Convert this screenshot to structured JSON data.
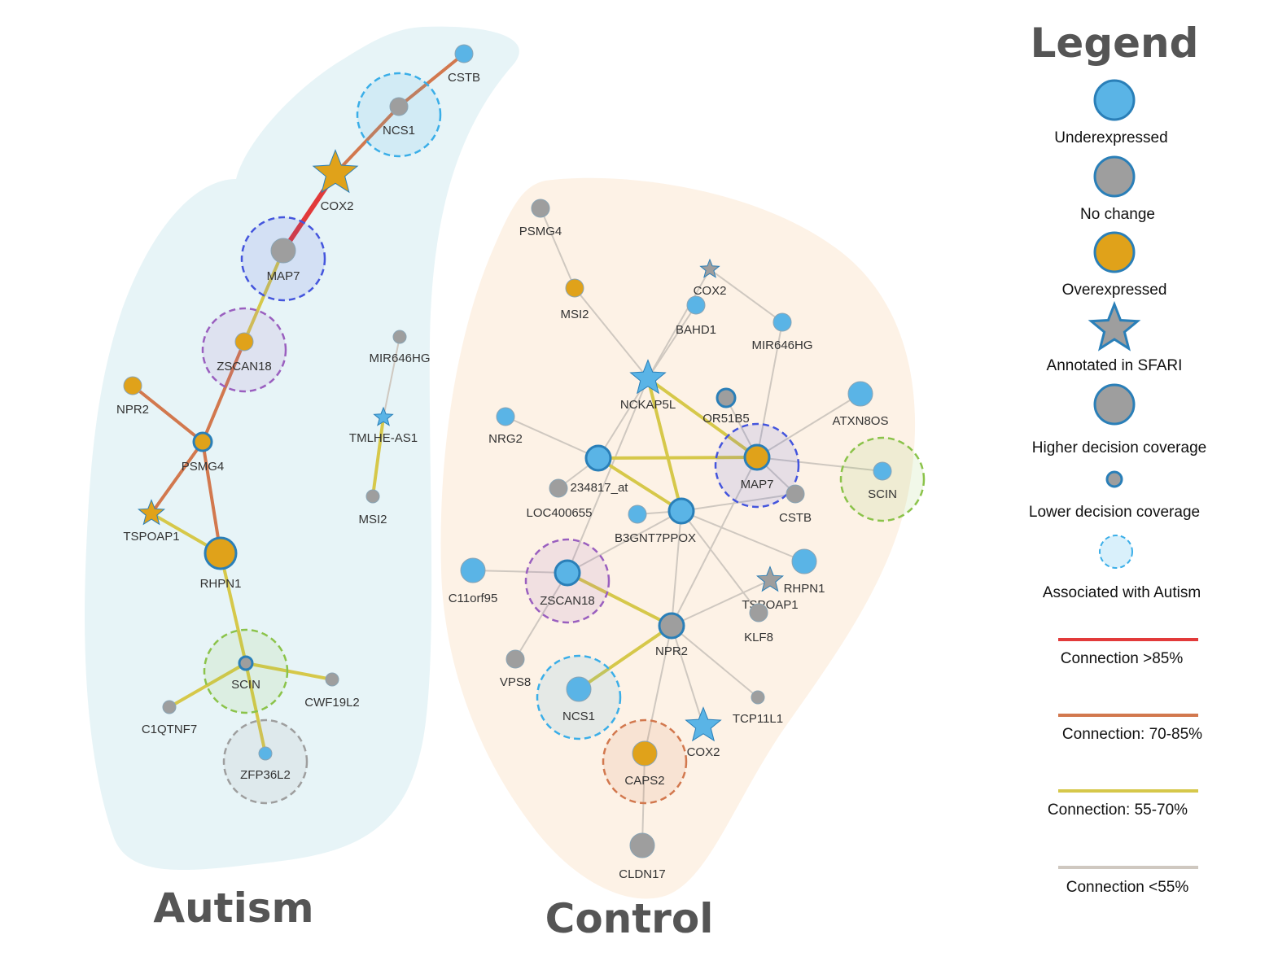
{
  "colors": {
    "underexpressed": "#5ab4e6",
    "no_change": "#9e9e9e",
    "overexpressed": "#e0a21a",
    "node_border": "#2a7fb8",
    "edge_gt85": "#e23a3a",
    "edge_70_85": "#d2784e",
    "edge_55_70": "#d6c84a",
    "edge_lt55": "#cfc8c0",
    "autism_bg": "#e7f4f7",
    "control_bg": "#fdf2e6"
  },
  "groups": {
    "autism": {
      "title": "Autism"
    },
    "control": {
      "title": "Control"
    }
  },
  "legend": {
    "title": "Legend",
    "items": [
      {
        "key": "underexpressed",
        "label": "Underexpressed",
        "icon": "circle-node-icon"
      },
      {
        "key": "no_change",
        "label": "No change",
        "icon": "circle-node-icon"
      },
      {
        "key": "overexpressed",
        "label": "Overexpressed",
        "icon": "circle-node-icon"
      },
      {
        "key": "sfari",
        "label": "Annotated in SFARI",
        "icon": "star-node-icon"
      },
      {
        "key": "high_cov",
        "label": "Higher decision coverage",
        "icon": "large-node-icon"
      },
      {
        "key": "low_cov",
        "label": "Lower decision coverage",
        "icon": "small-node-icon"
      },
      {
        "key": "autism_assoc",
        "label": "Associated with Autism",
        "icon": "dashed-halo-icon"
      },
      {
        "key": "edge_gt85",
        "label": "Connection >85%",
        "icon": "red-line-icon"
      },
      {
        "key": "edge_70_85",
        "label": "Connection: 70-85%",
        "icon": "orange-line-icon"
      },
      {
        "key": "edge_55_70",
        "label": "Connection: 55-70%",
        "icon": "yellow-line-icon"
      },
      {
        "key": "edge_lt55",
        "label": "Connection <55%",
        "icon": "grey-line-icon"
      }
    ]
  },
  "autism_network": {
    "nodes": [
      {
        "id": "CSTB",
        "label": "CSTB",
        "expr": "under",
        "size": "small"
      },
      {
        "id": "NCS1",
        "label": "NCS1",
        "expr": "none",
        "size": "small",
        "halo": "#3aaee8"
      },
      {
        "id": "COX2",
        "label": "COX2",
        "expr": "over",
        "shape": "star",
        "size": "large"
      },
      {
        "id": "MAP7",
        "label": "MAP7",
        "expr": "none",
        "size": "medium",
        "halo": "#4455dd"
      },
      {
        "id": "ZSCAN18",
        "label": "ZSCAN18",
        "expr": "over",
        "size": "small",
        "halo": "#9a5fbf"
      },
      {
        "id": "NPR2",
        "label": "NPR2",
        "expr": "over",
        "size": "small"
      },
      {
        "id": "PSMG4",
        "label": "PSMG4",
        "expr": "over",
        "size": "small",
        "border": true
      },
      {
        "id": "TSPOAP1",
        "label": "TSPOAP1",
        "expr": "over",
        "shape": "star",
        "size": "small"
      },
      {
        "id": "RHPN1",
        "label": "RHPN1",
        "expr": "over",
        "size": "large",
        "border": true
      },
      {
        "id": "SCIN",
        "label": "SCIN",
        "expr": "none",
        "size": "tiny",
        "halo": "#8bc34a",
        "border": true
      },
      {
        "id": "C1QTNF7",
        "label": "C1QTNF7",
        "expr": "none",
        "size": "tiny"
      },
      {
        "id": "CWF19L2",
        "label": "CWF19L2",
        "expr": "none",
        "size": "tiny"
      },
      {
        "id": "ZFP36L2",
        "label": "ZFP36L2",
        "expr": "under",
        "size": "tiny",
        "halo": "#9e9e9e"
      },
      {
        "id": "MIR646HG",
        "label": "MIR646HG",
        "expr": "none",
        "size": "tiny"
      },
      {
        "id": "TMLHE-AS1",
        "label": "TMLHE-AS1",
        "expr": "under",
        "shape": "star",
        "size": "tiny"
      },
      {
        "id": "MSI2",
        "label": "MSI2",
        "expr": "none",
        "size": "tiny"
      }
    ],
    "edges": [
      {
        "from": "CSTB",
        "to": "NCS1",
        "strength": "70-85"
      },
      {
        "from": "NCS1",
        "to": "COX2",
        "strength": "70-85"
      },
      {
        "from": "COX2",
        "to": "MAP7",
        "strength": ">85"
      },
      {
        "from": "MAP7",
        "to": "ZSCAN18",
        "strength": "55-70"
      },
      {
        "from": "ZSCAN18",
        "to": "PSMG4",
        "strength": "70-85"
      },
      {
        "from": "NPR2",
        "to": "PSMG4",
        "strength": "70-85"
      },
      {
        "from": "PSMG4",
        "to": "TSPOAP1",
        "strength": "70-85"
      },
      {
        "from": "PSMG4",
        "to": "RHPN1",
        "strength": "70-85"
      },
      {
        "from": "TSPOAP1",
        "to": "RHPN1",
        "strength": "55-70"
      },
      {
        "from": "RHPN1",
        "to": "SCIN",
        "strength": "55-70"
      },
      {
        "from": "SCIN",
        "to": "C1QTNF7",
        "strength": "55-70"
      },
      {
        "from": "SCIN",
        "to": "CWF19L2",
        "strength": "55-70"
      },
      {
        "from": "SCIN",
        "to": "ZFP36L2",
        "strength": "55-70"
      },
      {
        "from": "MIR646HG",
        "to": "TMLHE-AS1",
        "strength": "<55"
      },
      {
        "from": "TMLHE-AS1",
        "to": "MSI2",
        "strength": "55-70"
      }
    ]
  },
  "control_network": {
    "nodes": [
      {
        "id": "PSMG4",
        "label": "PSMG4",
        "expr": "none",
        "size": "small"
      },
      {
        "id": "MSI2",
        "label": "MSI2",
        "expr": "over",
        "size": "small"
      },
      {
        "id": "COX2a",
        "label": "COX2",
        "expr": "none",
        "shape": "star",
        "size": "tiny"
      },
      {
        "id": "BAHD1",
        "label": "BAHD1",
        "expr": "under",
        "size": "small"
      },
      {
        "id": "MIR646HG",
        "label": "MIR646HG",
        "expr": "under",
        "size": "small"
      },
      {
        "id": "NCKAP5L",
        "label": "NCKAP5L",
        "expr": "under",
        "shape": "star",
        "size": "medium"
      },
      {
        "id": "OR51B5",
        "label": "OR51B5",
        "expr": "none",
        "size": "small",
        "border": true
      },
      {
        "id": "ATXN8OS",
        "label": "ATXN8OS",
        "expr": "under",
        "size": "medium"
      },
      {
        "id": "NRG2",
        "label": "NRG2",
        "expr": "under",
        "size": "small"
      },
      {
        "id": "hub1",
        "label": "",
        "expr": "under",
        "size": "medium",
        "border": true
      },
      {
        "id": "MAP7",
        "label": "MAP7",
        "expr": "over",
        "size": "medium",
        "halo": "#4455dd",
        "border": true
      },
      {
        "id": "SCIN",
        "label": "SCIN",
        "expr": "under",
        "size": "small",
        "halo": "#8bc34a"
      },
      {
        "id": "234817_at",
        "label": "234817_at",
        "expr": "none",
        "size": "small"
      },
      {
        "id": "LOC400655",
        "label": "LOC400655",
        "expr": "under",
        "size": "small"
      },
      {
        "id": "B3GNT7PPOX",
        "label": "B3GNT7PPOX",
        "expr": "under",
        "size": "medium",
        "border": true
      },
      {
        "id": "CSTB",
        "label": "CSTB",
        "expr": "none",
        "size": "small"
      },
      {
        "id": "RHPN1",
        "label": "RHPN1",
        "expr": "under",
        "size": "medium"
      },
      {
        "id": "C11orf95",
        "label": "C11orf95",
        "expr": "under",
        "size": "medium"
      },
      {
        "id": "ZSCAN18",
        "label": "ZSCAN18",
        "expr": "under",
        "size": "medium",
        "halo": "#9a5fbf",
        "border": true
      },
      {
        "id": "TSPOAP1",
        "label": "TSPOAP1",
        "expr": "none",
        "shape": "star",
        "size": "small"
      },
      {
        "id": "KLF8",
        "label": "KLF8",
        "expr": "none",
        "size": "small"
      },
      {
        "id": "NPR2",
        "label": "NPR2",
        "expr": "none",
        "size": "medium",
        "border": true
      },
      {
        "id": "VPS8",
        "label": "VPS8",
        "expr": "none",
        "size": "small"
      },
      {
        "id": "NCS1",
        "label": "NCS1",
        "expr": "under",
        "size": "medium",
        "halo": "#3aaee8"
      },
      {
        "id": "TCP11L1",
        "label": "TCP11L1",
        "expr": "none",
        "size": "tiny"
      },
      {
        "id": "COX2b",
        "label": "COX2",
        "expr": "under",
        "shape": "star",
        "size": "medium"
      },
      {
        "id": "CAPS2",
        "label": "CAPS2",
        "expr": "over",
        "size": "medium",
        "halo": "#d2784e"
      },
      {
        "id": "CLDN17",
        "label": "CLDN17",
        "expr": "none",
        "size": "medium"
      }
    ],
    "edges": [
      {
        "from": "PSMG4",
        "to": "MSI2",
        "strength": "<55"
      },
      {
        "from": "MSI2",
        "to": "NCKAP5L",
        "strength": "<55"
      },
      {
        "from": "NCKAP5L",
        "to": "BAHD1",
        "strength": "<55"
      },
      {
        "from": "NCKAP5L",
        "to": "COX2a",
        "strength": "<55"
      },
      {
        "from": "COX2a",
        "to": "MIR646HG",
        "strength": "<55"
      },
      {
        "from": "NCKAP5L",
        "to": "MAP7",
        "strength": "55-70"
      },
      {
        "from": "NCKAP5L",
        "to": "B3GNT7PPOX",
        "strength": "55-70"
      },
      {
        "from": "NCKAP5L",
        "to": "hub1",
        "strength": "<55"
      },
      {
        "from": "NCKAP5L",
        "to": "ZSCAN18",
        "strength": "<55"
      },
      {
        "from": "hub1",
        "to": "MAP7",
        "strength": "55-70"
      },
      {
        "from": "hub1",
        "to": "B3GNT7PPOX",
        "strength": "55-70"
      },
      {
        "from": "hub1",
        "to": "NRG2",
        "strength": "<55"
      },
      {
        "from": "hub1",
        "to": "234817_at",
        "strength": "<55"
      },
      {
        "from": "MAP7",
        "to": "ATXN8OS",
        "strength": "<55"
      },
      {
        "from": "MAP7",
        "to": "SCIN",
        "strength": "<55"
      },
      {
        "from": "MAP7",
        "to": "CSTB",
        "strength": "<55"
      },
      {
        "from": "MAP7",
        "to": "OR51B5",
        "strength": "<55"
      },
      {
        "from": "MAP7",
        "to": "NPR2",
        "strength": "<55"
      },
      {
        "from": "MAP7",
        "to": "MIR646HG",
        "strength": "<55"
      },
      {
        "from": "B3GNT7PPOX",
        "to": "ZSCAN18",
        "strength": "<55"
      },
      {
        "from": "B3GNT7PPOX",
        "to": "RHPN1",
        "strength": "<55"
      },
      {
        "from": "B3GNT7PPOX",
        "to": "NPR2",
        "strength": "<55"
      },
      {
        "from": "B3GNT7PPOX",
        "to": "CSTB",
        "strength": "<55"
      },
      {
        "from": "B3GNT7PPOX",
        "to": "LOC400655",
        "strength": "<55"
      },
      {
        "from": "B3GNT7PPOX",
        "to": "KLF8",
        "strength": "<55"
      },
      {
        "from": "ZSCAN18",
        "to": "NPR2",
        "strength": "55-70"
      },
      {
        "from": "ZSCAN18",
        "to": "C11orf95",
        "strength": "<55"
      },
      {
        "from": "ZSCAN18",
        "to": "VPS8",
        "strength": "<55"
      },
      {
        "from": "NPR2",
        "to": "NCS1",
        "strength": "55-70"
      },
      {
        "from": "NPR2",
        "to": "CAPS2",
        "strength": "<55"
      },
      {
        "from": "NPR2",
        "to": "COX2b",
        "strength": "<55"
      },
      {
        "from": "NPR2",
        "to": "TCP11L1",
        "strength": "<55"
      },
      {
        "from": "NPR2",
        "to": "TSPOAP1",
        "strength": "<55"
      },
      {
        "from": "CAPS2",
        "to": "CLDN17",
        "strength": "<55"
      }
    ]
  }
}
